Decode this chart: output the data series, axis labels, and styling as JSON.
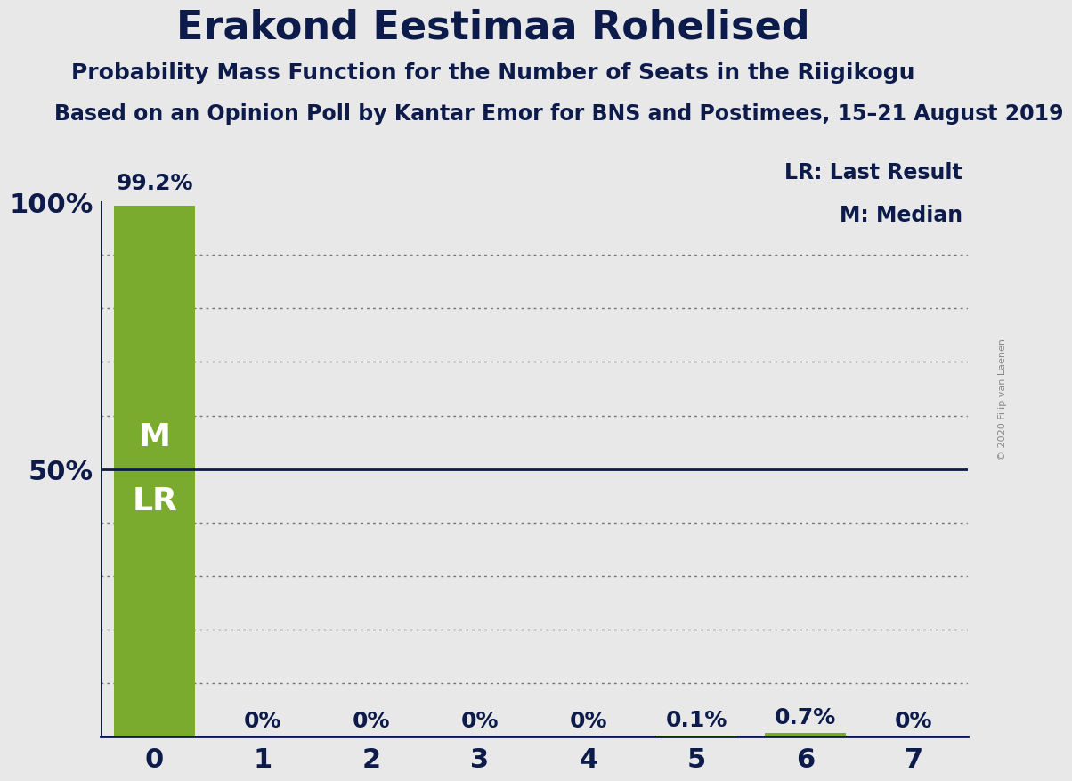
{
  "title": "Erakond Eestimaa Rohelised",
  "subtitle": "Probability Mass Function for the Number of Seats in the Riigikogu",
  "sub_subtitle": "Based on an Opinion Poll by Kantar Emor for BNS and Postimees, 15–21 August 2019",
  "copyright": "© 2020 Filip van Laenen",
  "categories": [
    0,
    1,
    2,
    3,
    4,
    5,
    6,
    7
  ],
  "values": [
    99.2,
    0.0,
    0.0,
    0.0,
    0.0,
    0.1,
    0.7,
    0.0
  ],
  "bar_color": "#7aab2e",
  "background_color": "#e8e8e8",
  "axis_label_color": "#0d1b4b",
  "title_color": "#0d1b4b",
  "grid_color": "#555555",
  "lr_line_color": "#0d1b4b",
  "lr_line_value": 50,
  "legend_lr": "LR: Last Result",
  "legend_m": "M: Median",
  "ylim": [
    0,
    100
  ],
  "title_fontsize": 32,
  "subtitle_fontsize": 18,
  "sub_subtitle_fontsize": 17,
  "bar_label_fontsize": 18,
  "axis_tick_fontsize": 22,
  "legend_fontsize": 17,
  "ml_label_fontsize": 26
}
